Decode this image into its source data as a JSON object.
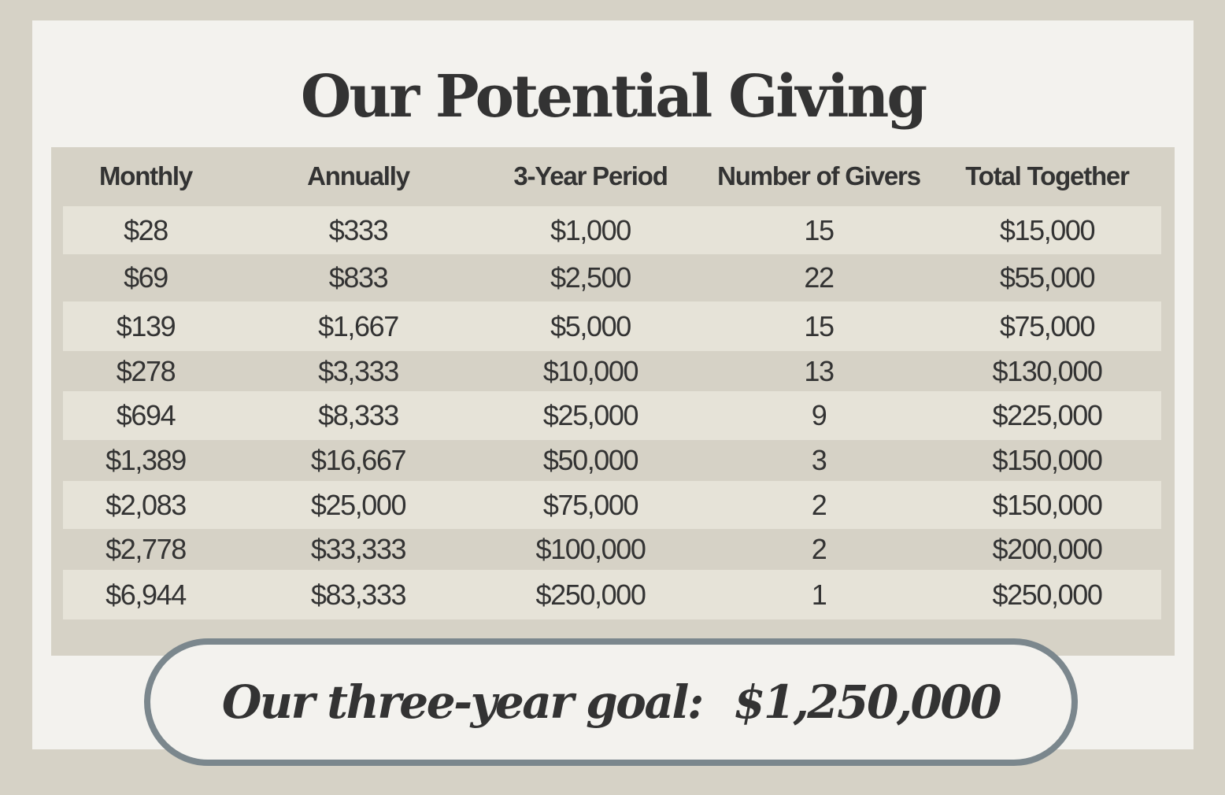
{
  "title": "Our Potential Giving",
  "colors": {
    "background": "#d6d2c6",
    "card": "#f3f2ee",
    "row_light": "#e6e3d8",
    "row_dark": "#d6d2c6",
    "text": "#333333",
    "pill_border": "#7b878d"
  },
  "table": {
    "headers": [
      "Monthly",
      "Annually",
      "3-Year Period",
      "Number of Givers",
      "Total Together"
    ],
    "rows": [
      [
        "$28",
        "$333",
        "$1,000",
        "15",
        "$15,000"
      ],
      [
        "$69",
        "$833",
        "$2,500",
        "22",
        "$55,000"
      ],
      [
        "$139",
        "$1,667",
        "$5,000",
        "15",
        "$75,000"
      ],
      [
        "$278",
        "$3,333",
        "$10,000",
        "13",
        "$130,000"
      ],
      [
        "$694",
        "$8,333",
        "$25,000",
        "9",
        "$225,000"
      ],
      [
        "$1,389",
        "$16,667",
        "$50,000",
        "3",
        "$150,000"
      ],
      [
        "$2,083",
        "$25,000",
        "$75,000",
        "2",
        "$150,000"
      ],
      [
        "$2,778",
        "$33,333",
        "$100,000",
        "2",
        "$200,000"
      ],
      [
        "$6,944",
        "$83,333",
        "$250,000",
        "1",
        "$250,000"
      ]
    ]
  },
  "goal": {
    "label": "Our three-year goal:",
    "amount": "$1,250,000"
  }
}
